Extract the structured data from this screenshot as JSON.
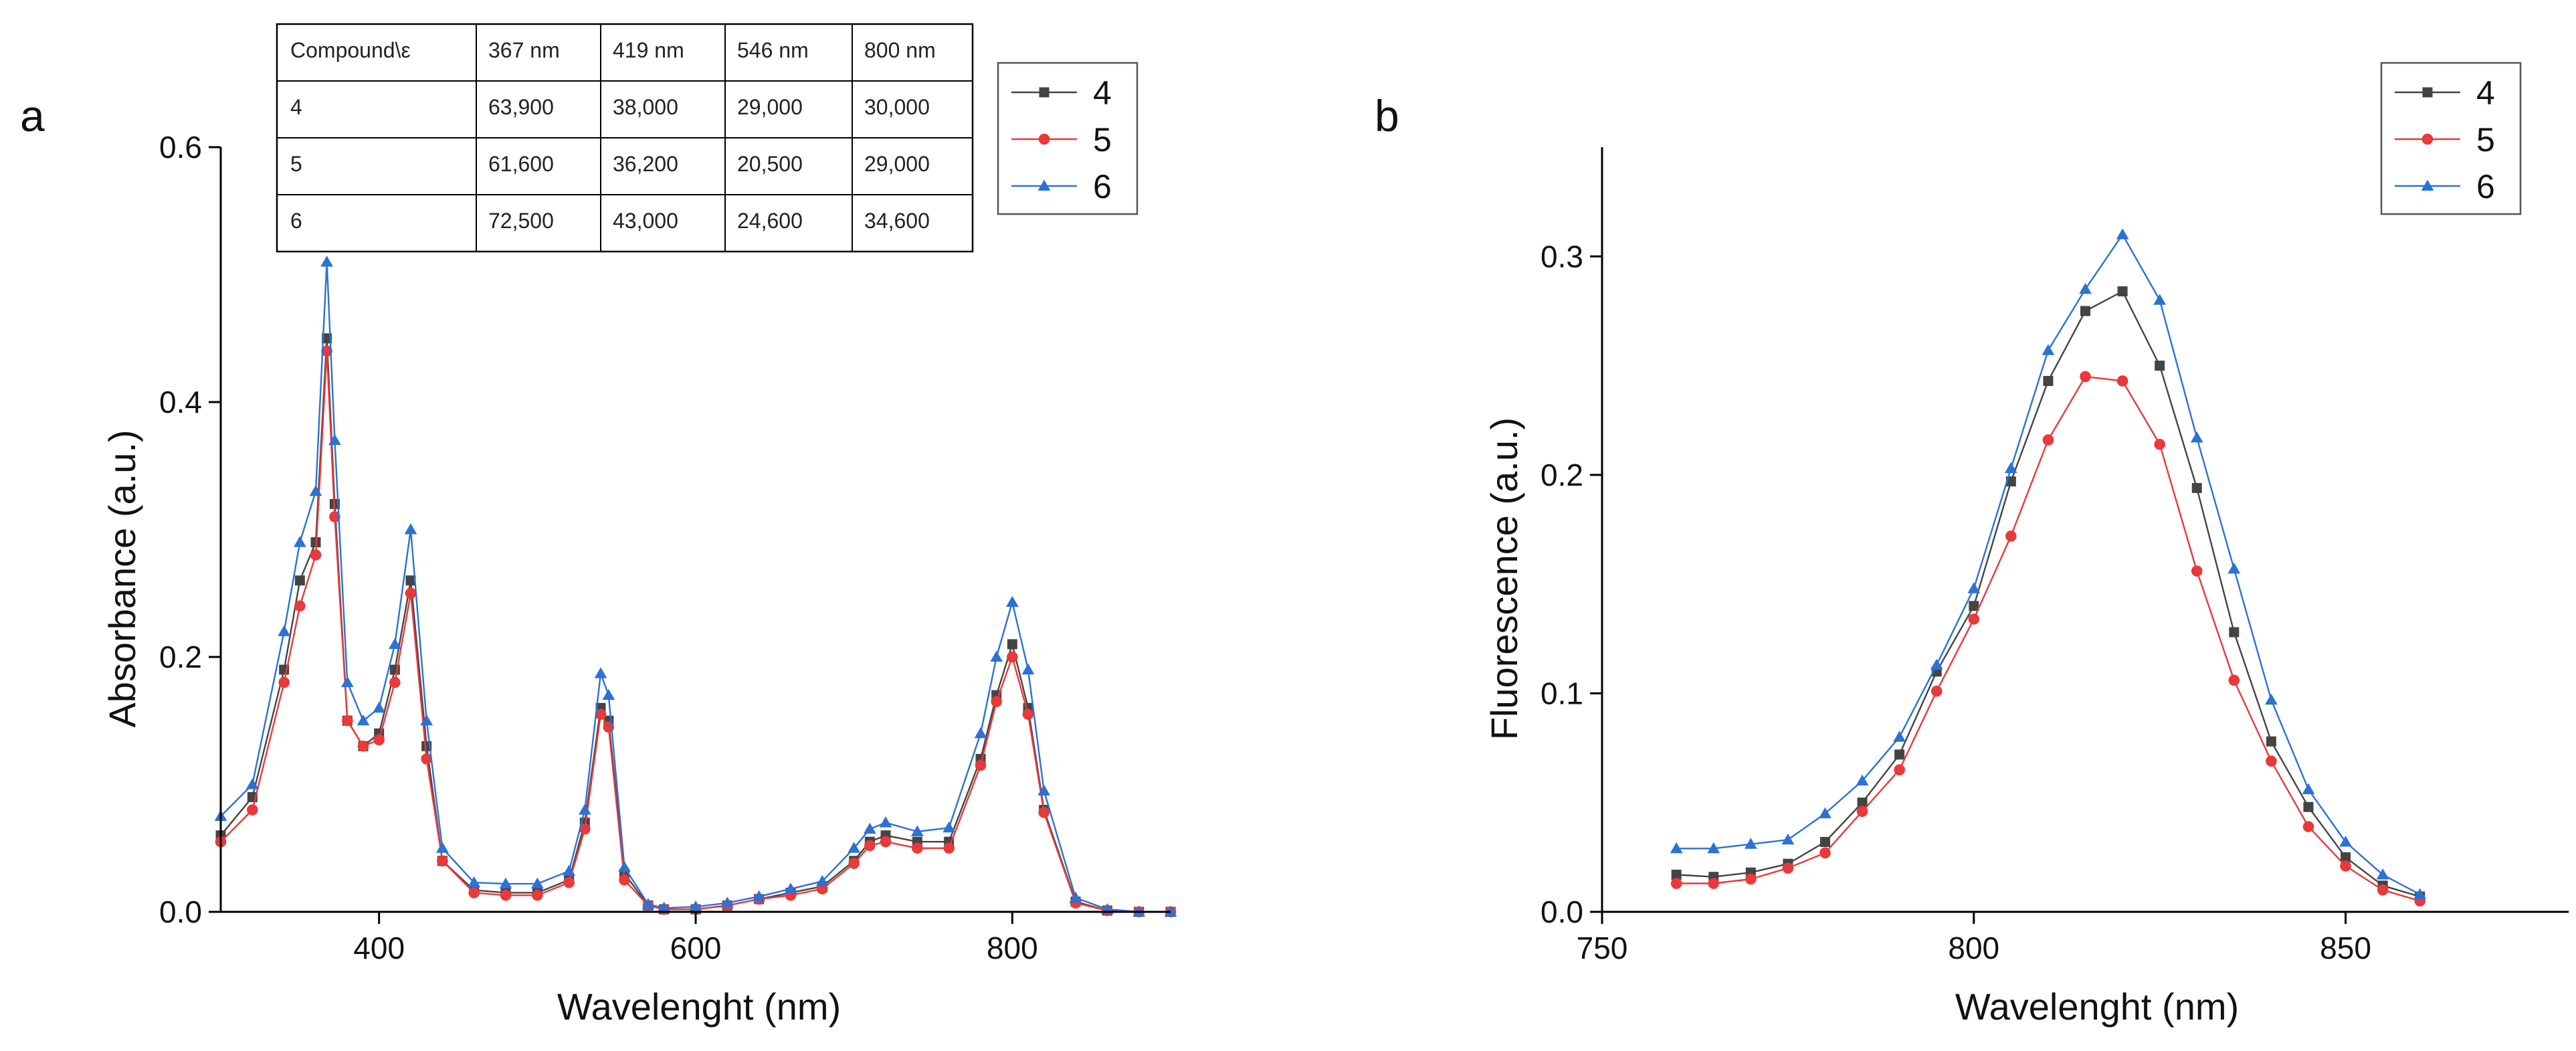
{
  "chart_data": [
    {
      "panel": "a",
      "type": "line",
      "xlabel": "Wavelenght (nm)",
      "ylabel": "Absorbance (a.u.)",
      "xlim": [
        300,
        900
      ],
      "ylim": [
        0,
        0.6
      ],
      "xticks": [
        400,
        600,
        800
      ],
      "yticks": [
        0.0,
        0.2,
        0.4,
        0.6
      ],
      "tick_decimals": 1,
      "legend": "top-right",
      "colors": {
        "4": "#444444",
        "5": "#e8393b",
        "6": "#2a72d4"
      },
      "x": [
        300,
        320,
        340,
        350,
        360,
        367,
        372,
        380,
        390,
        400,
        410,
        420,
        430,
        440,
        460,
        480,
        500,
        520,
        530,
        540,
        545,
        555,
        570,
        580,
        600,
        620,
        640,
        660,
        680,
        700,
        710,
        720,
        740,
        760,
        780,
        790,
        800,
        810,
        820,
        840,
        860,
        880,
        900
      ],
      "series": [
        {
          "name": "4",
          "marker": "square",
          "values": [
            0.06,
            0.09,
            0.19,
            0.26,
            0.29,
            0.45,
            0.32,
            0.15,
            0.13,
            0.14,
            0.19,
            0.26,
            0.13,
            0.04,
            0.017,
            0.015,
            0.015,
            0.025,
            0.07,
            0.16,
            0.15,
            0.03,
            0.005,
            0.002,
            0.002,
            0.005,
            0.01,
            0.015,
            0.02,
            0.04,
            0.055,
            0.06,
            0.055,
            0.055,
            0.12,
            0.17,
            0.21,
            0.16,
            0.08,
            0.008,
            0.001,
            0.0,
            0.0
          ]
        },
        {
          "name": "5",
          "marker": "circle",
          "values": [
            0.055,
            0.08,
            0.18,
            0.24,
            0.28,
            0.44,
            0.31,
            0.15,
            0.13,
            0.135,
            0.18,
            0.25,
            0.12,
            0.04,
            0.015,
            0.013,
            0.013,
            0.023,
            0.065,
            0.155,
            0.145,
            0.025,
            0.005,
            0.002,
            0.002,
            0.005,
            0.01,
            0.013,
            0.018,
            0.038,
            0.052,
            0.055,
            0.05,
            0.05,
            0.115,
            0.165,
            0.2,
            0.155,
            0.078,
            0.007,
            0.001,
            0.0,
            0.0
          ]
        },
        {
          "name": "6",
          "marker": "triangle",
          "values": [
            0.075,
            0.1,
            0.22,
            0.29,
            0.33,
            0.51,
            0.37,
            0.18,
            0.15,
            0.16,
            0.21,
            0.3,
            0.15,
            0.05,
            0.023,
            0.022,
            0.022,
            0.032,
            0.08,
            0.187,
            0.17,
            0.035,
            0.006,
            0.003,
            0.004,
            0.007,
            0.012,
            0.018,
            0.024,
            0.05,
            0.065,
            0.07,
            0.063,
            0.066,
            0.14,
            0.2,
            0.243,
            0.19,
            0.095,
            0.011,
            0.002,
            0.0,
            0.0
          ]
        }
      ],
      "table": {
        "header": [
          "Compound\\ε",
          "367 nm",
          "419 nm",
          "546 nm",
          "800 nm"
        ],
        "rows": [
          [
            "4",
            "63,900",
            "38,000",
            "29,000",
            "30,000"
          ],
          [
            "5",
            "61,600",
            "36,200",
            "20,500",
            "29,000"
          ],
          [
            "6",
            "72,500",
            "43,000",
            "24,600",
            "34,600"
          ]
        ]
      }
    },
    {
      "panel": "b",
      "type": "line",
      "xlabel": "Wavelenght (nm)",
      "ylabel": "Fluorescence (a.u.)",
      "xlim": [
        750,
        880
      ],
      "ylim": [
        0,
        0.35
      ],
      "xticks": [
        750,
        800,
        850
      ],
      "yticks": [
        0.0,
        0.1,
        0.2,
        0.3
      ],
      "tick_decimals": 1,
      "legend": "top-right",
      "colors": {
        "4": "#444444",
        "5": "#e8393b",
        "6": "#2a72d4"
      },
      "x": [
        760,
        765,
        770,
        775,
        780,
        785,
        790,
        795,
        800,
        805,
        810,
        815,
        820,
        825,
        830,
        835,
        840,
        845,
        850,
        855,
        860
      ],
      "series": [
        {
          "name": "4",
          "marker": "square",
          "values": [
            0.017,
            0.016,
            0.018,
            0.022,
            0.032,
            0.05,
            0.072,
            0.11,
            0.14,
            0.197,
            0.243,
            0.275,
            0.284,
            0.25,
            0.194,
            0.128,
            0.078,
            0.048,
            0.025,
            0.012,
            0.007
          ]
        },
        {
          "name": "5",
          "marker": "circle",
          "values": [
            0.013,
            0.013,
            0.015,
            0.02,
            0.027,
            0.046,
            0.065,
            0.101,
            0.134,
            0.172,
            0.216,
            0.245,
            0.243,
            0.214,
            0.156,
            0.106,
            0.069,
            0.039,
            0.021,
            0.01,
            0.005
          ]
        },
        {
          "name": "6",
          "marker": "triangle",
          "values": [
            0.029,
            0.029,
            0.031,
            0.033,
            0.045,
            0.06,
            0.08,
            0.113,
            0.148,
            0.203,
            0.257,
            0.285,
            0.31,
            0.28,
            0.217,
            0.157,
            0.097,
            0.056,
            0.032,
            0.017,
            0.008
          ]
        }
      ]
    }
  ]
}
